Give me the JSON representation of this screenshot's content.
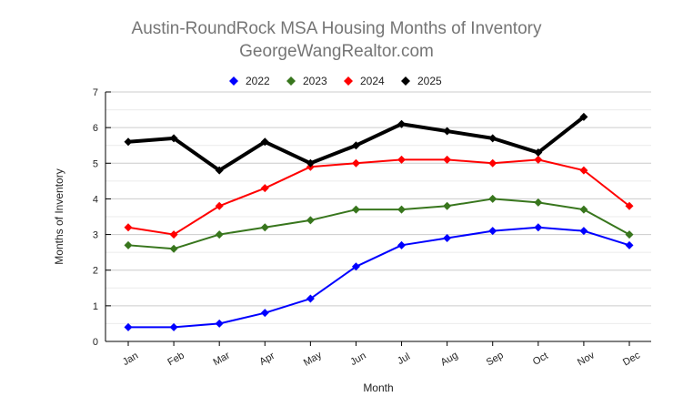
{
  "chart_data": {
    "type": "line",
    "title": "Austin-RoundRock MSA Housing Months of Inventory",
    "subtitle": "GeorgeWangRealtor.com",
    "xlabel": "Month",
    "ylabel": "Months of Inventory",
    "ylim": [
      0,
      7
    ],
    "yticks": [
      "0",
      "1",
      "2",
      "3",
      "4",
      "5",
      "6",
      "7"
    ],
    "grid": true,
    "legend": "top",
    "categories": [
      "Jan",
      "Feb",
      "Mar",
      "Apr",
      "May",
      "Jun",
      "Jul",
      "Aug",
      "Sep",
      "Oct",
      "Nov",
      "Dec"
    ],
    "series": [
      {
        "name": "2022",
        "color": "#0000ff",
        "values": [
          0.4,
          0.4,
          0.5,
          0.8,
          1.2,
          2.1,
          2.7,
          2.9,
          3.1,
          3.2,
          3.1,
          2.7
        ]
      },
      {
        "name": "2023",
        "color": "#38761d",
        "values": [
          2.7,
          2.6,
          3.0,
          3.2,
          3.4,
          3.7,
          3.7,
          3.8,
          4.0,
          3.9,
          3.7,
          3.0
        ]
      },
      {
        "name": "2024",
        "color": "#ff0000",
        "values": [
          3.2,
          3.0,
          3.8,
          4.3,
          4.9,
          5.0,
          5.1,
          5.1,
          5.0,
          5.1,
          4.8,
          3.8
        ]
      },
      {
        "name": "2025",
        "color": "#000000",
        "values": [
          5.6,
          5.7,
          4.8,
          5.6,
          5.0,
          5.5,
          6.1,
          5.9,
          5.7,
          5.3,
          6.3,
          null
        ]
      }
    ]
  }
}
